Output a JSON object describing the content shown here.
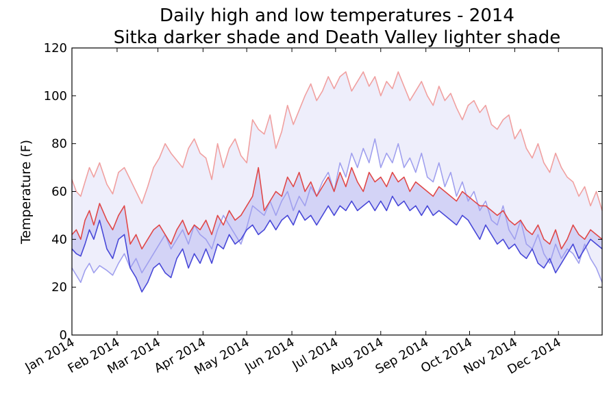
{
  "chart_data": {
    "type": "line",
    "title": "Daily high and low temperatures - 2014",
    "subtitle": "Sitka darker shade and Death Valley lighter shade",
    "xlabel": "",
    "ylabel": "Temperature (F)",
    "ylim": [
      0,
      120
    ],
    "yticks": [
      "0",
      "20",
      "40",
      "60",
      "80",
      "100",
      "120"
    ],
    "xlim": [
      "2014-01-01",
      "2014-12-31"
    ],
    "xticks": [
      {
        "date": "2014-01-01",
        "label": "Jan 2014"
      },
      {
        "date": "2014-02-01",
        "label": "Feb 2014"
      },
      {
        "date": "2014-03-01",
        "label": "Mar 2014"
      },
      {
        "date": "2014-04-01",
        "label": "Apr 2014"
      },
      {
        "date": "2014-05-01",
        "label": "May 2014"
      },
      {
        "date": "2014-06-01",
        "label": "Jun 2014"
      },
      {
        "date": "2014-07-01",
        "label": "Jul 2014"
      },
      {
        "date": "2014-08-01",
        "label": "Aug 2014"
      },
      {
        "date": "2014-09-01",
        "label": "Sep 2014"
      },
      {
        "date": "2014-10-01",
        "label": "Oct 2014"
      },
      {
        "date": "2014-11-01",
        "label": "Nov 2014"
      },
      {
        "date": "2014-12-01",
        "label": "Dec 2014"
      }
    ],
    "grid": false,
    "legend": "none",
    "series": [
      {
        "role": "death-valley-high",
        "color": "#f0a0a0",
        "x": [
          "2014-01-01",
          "2014-01-04",
          "2014-01-07",
          "2014-01-10",
          "2014-01-13",
          "2014-01-16",
          "2014-01-20",
          "2014-01-25",
          "2014-01-29",
          "2014-02-02",
          "2014-02-06",
          "2014-02-10",
          "2014-02-14",
          "2014-02-18",
          "2014-02-22",
          "2014-02-26",
          "2014-03-02",
          "2014-03-06",
          "2014-03-10",
          "2014-03-14",
          "2014-03-18",
          "2014-03-22",
          "2014-03-26",
          "2014-03-30",
          "2014-04-03",
          "2014-04-07",
          "2014-04-11",
          "2014-04-15",
          "2014-04-19",
          "2014-04-23",
          "2014-04-27",
          "2014-05-01",
          "2014-05-05",
          "2014-05-09",
          "2014-05-13",
          "2014-05-17",
          "2014-05-21",
          "2014-05-25",
          "2014-05-29",
          "2014-06-02",
          "2014-06-06",
          "2014-06-10",
          "2014-06-14",
          "2014-06-18",
          "2014-06-22",
          "2014-06-26",
          "2014-06-30",
          "2014-07-04",
          "2014-07-08",
          "2014-07-12",
          "2014-07-16",
          "2014-07-20",
          "2014-07-24",
          "2014-07-28",
          "2014-08-01",
          "2014-08-05",
          "2014-08-09",
          "2014-08-13",
          "2014-08-17",
          "2014-08-21",
          "2014-08-25",
          "2014-08-29",
          "2014-09-02",
          "2014-09-06",
          "2014-09-10",
          "2014-09-14",
          "2014-09-18",
          "2014-09-22",
          "2014-09-26",
          "2014-09-30",
          "2014-10-04",
          "2014-10-08",
          "2014-10-12",
          "2014-10-16",
          "2014-10-20",
          "2014-10-24",
          "2014-10-28",
          "2014-11-01",
          "2014-11-05",
          "2014-11-09",
          "2014-11-13",
          "2014-11-17",
          "2014-11-21",
          "2014-11-25",
          "2014-11-29",
          "2014-12-03",
          "2014-12-07",
          "2014-12-11",
          "2014-12-15",
          "2014-12-19",
          "2014-12-23",
          "2014-12-27",
          "2014-12-31"
        ],
        "values": [
          65,
          60,
          58,
          64,
          70,
          66,
          72,
          63,
          59,
          68,
          70,
          65,
          60,
          55,
          62,
          70,
          74,
          80,
          76,
          73,
          70,
          78,
          82,
          76,
          74,
          65,
          80,
          70,
          78,
          82,
          75,
          72,
          90,
          86,
          84,
          92,
          78,
          85,
          96,
          88,
          94,
          100,
          105,
          98,
          102,
          108,
          103,
          108,
          110,
          102,
          106,
          110,
          104,
          108,
          100,
          106,
          103,
          110,
          104,
          98,
          102,
          106,
          100,
          96,
          104,
          98,
          101,
          95,
          90,
          96,
          98,
          93,
          96,
          88,
          86,
          90,
          92,
          82,
          86,
          78,
          74,
          80,
          72,
          68,
          76,
          70,
          66,
          64,
          58,
          62,
          54,
          60,
          52
        ]
      },
      {
        "role": "death-valley-low",
        "color": "#a0a0ee",
        "x": [
          "2014-01-01",
          "2014-01-04",
          "2014-01-07",
          "2014-01-10",
          "2014-01-13",
          "2014-01-16",
          "2014-01-20",
          "2014-01-25",
          "2014-01-29",
          "2014-02-02",
          "2014-02-06",
          "2014-02-10",
          "2014-02-14",
          "2014-02-18",
          "2014-02-22",
          "2014-02-26",
          "2014-03-02",
          "2014-03-06",
          "2014-03-10",
          "2014-03-14",
          "2014-03-18",
          "2014-03-22",
          "2014-03-26",
          "2014-03-30",
          "2014-04-03",
          "2014-04-07",
          "2014-04-11",
          "2014-04-15",
          "2014-04-19",
          "2014-04-23",
          "2014-04-27",
          "2014-05-01",
          "2014-05-05",
          "2014-05-09",
          "2014-05-13",
          "2014-05-17",
          "2014-05-21",
          "2014-05-25",
          "2014-05-29",
          "2014-06-02",
          "2014-06-06",
          "2014-06-10",
          "2014-06-14",
          "2014-06-18",
          "2014-06-22",
          "2014-06-26",
          "2014-06-30",
          "2014-07-04",
          "2014-07-08",
          "2014-07-12",
          "2014-07-16",
          "2014-07-20",
          "2014-07-24",
          "2014-07-28",
          "2014-08-01",
          "2014-08-05",
          "2014-08-09",
          "2014-08-13",
          "2014-08-17",
          "2014-08-21",
          "2014-08-25",
          "2014-08-29",
          "2014-09-02",
          "2014-09-06",
          "2014-09-10",
          "2014-09-14",
          "2014-09-18",
          "2014-09-22",
          "2014-09-26",
          "2014-09-30",
          "2014-10-04",
          "2014-10-08",
          "2014-10-12",
          "2014-10-16",
          "2014-10-20",
          "2014-10-24",
          "2014-10-28",
          "2014-11-01",
          "2014-11-05",
          "2014-11-09",
          "2014-11-13",
          "2014-11-17",
          "2014-11-21",
          "2014-11-25",
          "2014-11-29",
          "2014-12-03",
          "2014-12-07",
          "2014-12-11",
          "2014-12-15",
          "2014-12-19",
          "2014-12-23",
          "2014-12-27",
          "2014-12-31"
        ],
        "values": [
          28,
          25,
          22,
          27,
          30,
          26,
          29,
          27,
          25,
          30,
          34,
          28,
          32,
          26,
          30,
          34,
          38,
          42,
          36,
          40,
          44,
          38,
          46,
          42,
          40,
          36,
          44,
          50,
          46,
          42,
          38,
          45,
          54,
          52,
          50,
          56,
          50,
          56,
          60,
          52,
          58,
          54,
          62,
          58,
          64,
          68,
          60,
          72,
          66,
          76,
          70,
          78,
          72,
          82,
          70,
          76,
          72,
          80,
          70,
          74,
          68,
          76,
          66,
          64,
          72,
          62,
          68,
          58,
          64,
          56,
          60,
          52,
          56,
          48,
          46,
          54,
          44,
          40,
          48,
          38,
          36,
          42,
          34,
          30,
          38,
          32,
          36,
          34,
          30,
          38,
          32,
          28,
          22
        ]
      },
      {
        "role": "sitka-high",
        "color": "#e04848",
        "x": [
          "2014-01-01",
          "2014-01-04",
          "2014-01-07",
          "2014-01-10",
          "2014-01-13",
          "2014-01-16",
          "2014-01-20",
          "2014-01-25",
          "2014-01-29",
          "2014-02-02",
          "2014-02-06",
          "2014-02-10",
          "2014-02-14",
          "2014-02-18",
          "2014-02-22",
          "2014-02-26",
          "2014-03-02",
          "2014-03-06",
          "2014-03-10",
          "2014-03-14",
          "2014-03-18",
          "2014-03-22",
          "2014-03-26",
          "2014-03-30",
          "2014-04-03",
          "2014-04-07",
          "2014-04-11",
          "2014-04-15",
          "2014-04-19",
          "2014-04-23",
          "2014-04-27",
          "2014-05-01",
          "2014-05-05",
          "2014-05-09",
          "2014-05-13",
          "2014-05-17",
          "2014-05-21",
          "2014-05-25",
          "2014-05-29",
          "2014-06-02",
          "2014-06-06",
          "2014-06-10",
          "2014-06-14",
          "2014-06-18",
          "2014-06-22",
          "2014-06-26",
          "2014-06-30",
          "2014-07-04",
          "2014-07-08",
          "2014-07-12",
          "2014-07-16",
          "2014-07-20",
          "2014-07-24",
          "2014-07-28",
          "2014-08-01",
          "2014-08-05",
          "2014-08-09",
          "2014-08-13",
          "2014-08-17",
          "2014-08-21",
          "2014-08-25",
          "2014-08-29",
          "2014-09-02",
          "2014-09-06",
          "2014-09-10",
          "2014-09-14",
          "2014-09-18",
          "2014-09-22",
          "2014-09-26",
          "2014-09-30",
          "2014-10-04",
          "2014-10-08",
          "2014-10-12",
          "2014-10-16",
          "2014-10-20",
          "2014-10-24",
          "2014-10-28",
          "2014-11-01",
          "2014-11-05",
          "2014-11-09",
          "2014-11-13",
          "2014-11-17",
          "2014-11-21",
          "2014-11-25",
          "2014-11-29",
          "2014-12-03",
          "2014-12-07",
          "2014-12-11",
          "2014-12-15",
          "2014-12-19",
          "2014-12-23",
          "2014-12-27",
          "2014-12-31"
        ],
        "values": [
          42,
          44,
          40,
          48,
          52,
          46,
          55,
          48,
          44,
          50,
          54,
          38,
          42,
          36,
          40,
          44,
          46,
          42,
          38,
          44,
          48,
          42,
          46,
          44,
          48,
          42,
          50,
          46,
          52,
          48,
          50,
          54,
          58,
          70,
          52,
          56,
          60,
          58,
          66,
          62,
          68,
          60,
          64,
          58,
          62,
          66,
          60,
          68,
          62,
          70,
          64,
          60,
          68,
          64,
          66,
          62,
          68,
          64,
          66,
          60,
          64,
          62,
          60,
          58,
          62,
          60,
          58,
          56,
          60,
          58,
          56,
          54,
          54,
          52,
          50,
          52,
          48,
          46,
          48,
          44,
          42,
          46,
          40,
          38,
          44,
          36,
          40,
          46,
          42,
          40,
          44,
          42,
          40
        ]
      },
      {
        "role": "sitka-low",
        "color": "#4848d8",
        "x": [
          "2014-01-01",
          "2014-01-04",
          "2014-01-07",
          "2014-01-10",
          "2014-01-13",
          "2014-01-16",
          "2014-01-20",
          "2014-01-25",
          "2014-01-29",
          "2014-02-02",
          "2014-02-06",
          "2014-02-10",
          "2014-02-14",
          "2014-02-18",
          "2014-02-22",
          "2014-02-26",
          "2014-03-02",
          "2014-03-06",
          "2014-03-10",
          "2014-03-14",
          "2014-03-18",
          "2014-03-22",
          "2014-03-26",
          "2014-03-30",
          "2014-04-03",
          "2014-04-07",
          "2014-04-11",
          "2014-04-15",
          "2014-04-19",
          "2014-04-23",
          "2014-04-27",
          "2014-05-01",
          "2014-05-05",
          "2014-05-09",
          "2014-05-13",
          "2014-05-17",
          "2014-05-21",
          "2014-05-25",
          "2014-05-29",
          "2014-06-02",
          "2014-06-06",
          "2014-06-10",
          "2014-06-14",
          "2014-06-18",
          "2014-06-22",
          "2014-06-26",
          "2014-06-30",
          "2014-07-04",
          "2014-07-08",
          "2014-07-12",
          "2014-07-16",
          "2014-07-20",
          "2014-07-24",
          "2014-07-28",
          "2014-08-01",
          "2014-08-05",
          "2014-08-09",
          "2014-08-13",
          "2014-08-17",
          "2014-08-21",
          "2014-08-25",
          "2014-08-29",
          "2014-09-02",
          "2014-09-06",
          "2014-09-10",
          "2014-09-14",
          "2014-09-18",
          "2014-09-22",
          "2014-09-26",
          "2014-09-30",
          "2014-10-04",
          "2014-10-08",
          "2014-10-12",
          "2014-10-16",
          "2014-10-20",
          "2014-10-24",
          "2014-10-28",
          "2014-11-01",
          "2014-11-05",
          "2014-11-09",
          "2014-11-13",
          "2014-11-17",
          "2014-11-21",
          "2014-11-25",
          "2014-11-29",
          "2014-12-03",
          "2014-12-07",
          "2014-12-11",
          "2014-12-15",
          "2014-12-19",
          "2014-12-23",
          "2014-12-27",
          "2014-12-31"
        ],
        "values": [
          36,
          34,
          33,
          38,
          44,
          40,
          48,
          36,
          32,
          40,
          42,
          28,
          24,
          18,
          22,
          28,
          30,
          26,
          24,
          32,
          36,
          28,
          34,
          30,
          36,
          30,
          38,
          36,
          42,
          38,
          40,
          44,
          46,
          42,
          44,
          48,
          44,
          48,
          50,
          46,
          52,
          48,
          50,
          46,
          50,
          54,
          50,
          54,
          52,
          56,
          52,
          54,
          56,
          52,
          56,
          52,
          58,
          54,
          56,
          52,
          54,
          50,
          54,
          50,
          52,
          50,
          48,
          46,
          50,
          48,
          44,
          40,
          46,
          42,
          38,
          40,
          36,
          38,
          34,
          32,
          36,
          30,
          28,
          32,
          26,
          30,
          34,
          38,
          32,
          36,
          40,
          38,
          36
        ]
      }
    ]
  }
}
